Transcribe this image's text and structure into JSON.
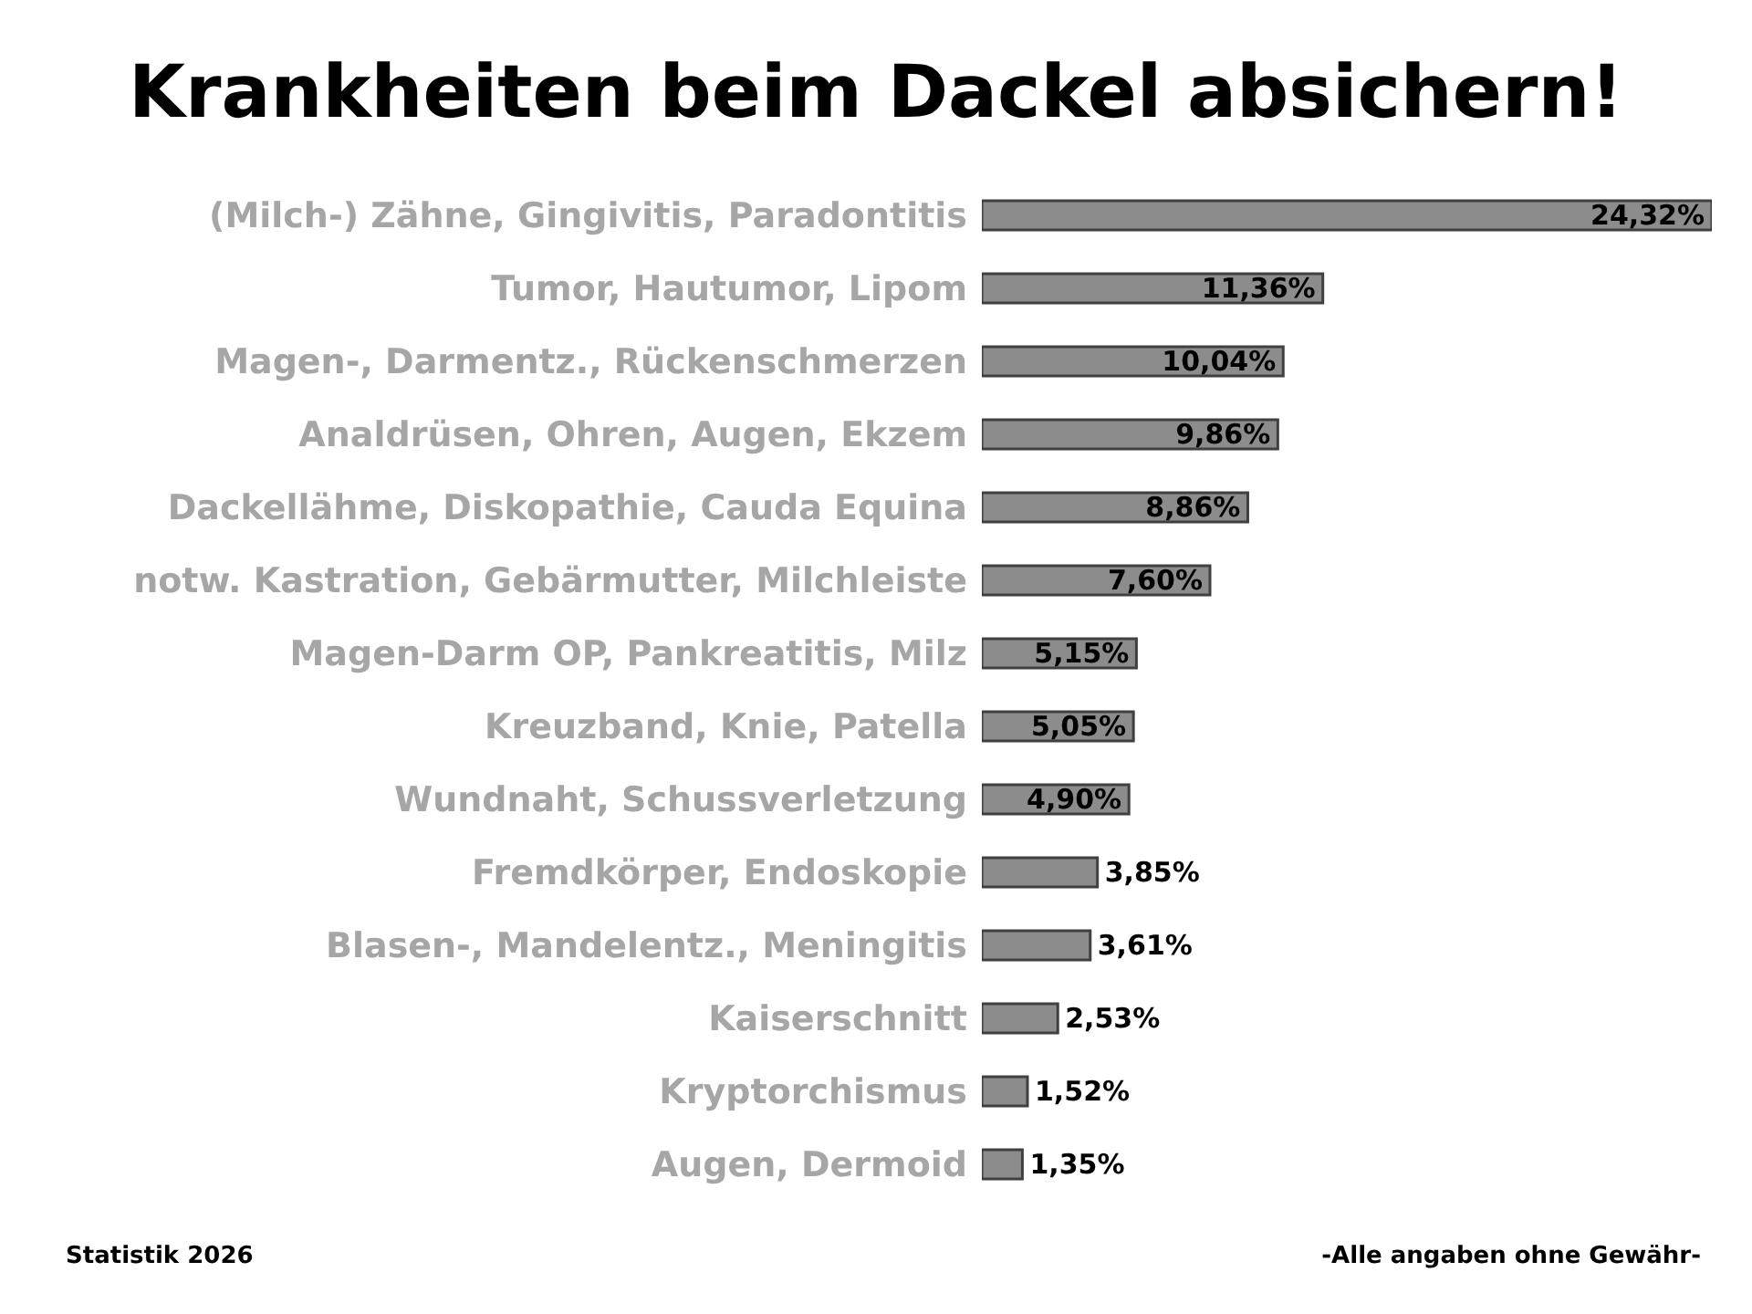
{
  "chart_data": {
    "type": "bar",
    "orientation": "horizontal",
    "title": "Krankheiten beim Dackel absichern!",
    "categories": [
      "(Milch-) Zähne, Gingivitis, Paradontitis",
      "Tumor, Hautumor, Lipom",
      "Magen-, Darmentz., Rückenschmerzen",
      "Analdrüsen, Ohren, Augen, Ekzem",
      "Dackellähme, Diskopathie, Cauda Equina",
      "notw. Kastration, Gebärmutter, Milchleiste",
      "Magen-Darm OP, Pankreatitis, Milz",
      "Kreuzband, Knie, Patella",
      "Wundnaht, Schussverletzung",
      "Fremdkörper, Endoskopie",
      "Blasen-, Mandelentz., Meningitis",
      "Kaiserschnitt",
      "Kryptorchismus",
      "Augen, Dermoid"
    ],
    "values": [
      24.32,
      11.36,
      10.04,
      9.86,
      8.86,
      7.6,
      5.15,
      5.05,
      4.9,
      3.85,
      3.61,
      2.53,
      1.52,
      1.35
    ],
    "value_labels": [
      "24,32%",
      "11,36%",
      "10,04%",
      "9,86%",
      "8,86%",
      "7,60%",
      "5,15%",
      "5,05%",
      "4,90%",
      "3,85%",
      "3,61%",
      "2,53%",
      "1,52%",
      "1,35%"
    ],
    "color": "#8c8c8c",
    "grid": false,
    "legend": false,
    "annotations": [
      "Statistik 2026",
      "-Alle angaben ohne Gewähr-"
    ]
  }
}
